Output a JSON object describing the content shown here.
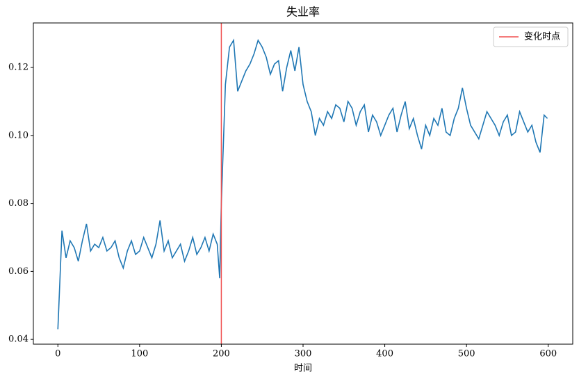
{
  "chart_data": {
    "type": "line",
    "title": "失业率",
    "xlabel": "时间",
    "color": "#1f77b4",
    "x": [
      0,
      5,
      10,
      15,
      20,
      25,
      30,
      35,
      40,
      45,
      50,
      55,
      60,
      65,
      70,
      75,
      80,
      85,
      90,
      95,
      100,
      105,
      110,
      115,
      120,
      125,
      130,
      135,
      140,
      145,
      150,
      155,
      160,
      165,
      170,
      175,
      180,
      185,
      190,
      195,
      198,
      200,
      205,
      210,
      215,
      220,
      225,
      230,
      235,
      240,
      245,
      250,
      255,
      260,
      265,
      270,
      275,
      280,
      285,
      290,
      295,
      300,
      305,
      310,
      315,
      320,
      325,
      330,
      335,
      340,
      345,
      350,
      355,
      360,
      365,
      370,
      375,
      380,
      385,
      390,
      395,
      400,
      405,
      410,
      415,
      420,
      425,
      430,
      435,
      440,
      445,
      450,
      455,
      460,
      465,
      470,
      475,
      480,
      485,
      490,
      495,
      500,
      505,
      510,
      515,
      520,
      525,
      530,
      535,
      540,
      545,
      550,
      555,
      560,
      565,
      570,
      575,
      580,
      585,
      590,
      595,
      599
    ],
    "values": [
      0.043,
      0.072,
      0.064,
      0.069,
      0.067,
      0.063,
      0.069,
      0.074,
      0.066,
      0.068,
      0.067,
      0.07,
      0.066,
      0.067,
      0.069,
      0.064,
      0.061,
      0.066,
      0.069,
      0.065,
      0.066,
      0.07,
      0.067,
      0.064,
      0.068,
      0.075,
      0.066,
      0.069,
      0.064,
      0.066,
      0.068,
      0.063,
      0.066,
      0.07,
      0.065,
      0.067,
      0.07,
      0.066,
      0.071,
      0.068,
      0.058,
      0.08,
      0.115,
      0.126,
      0.128,
      0.113,
      0.116,
      0.119,
      0.121,
      0.124,
      0.128,
      0.126,
      0.123,
      0.118,
      0.121,
      0.122,
      0.113,
      0.12,
      0.125,
      0.119,
      0.126,
      0.115,
      0.11,
      0.107,
      0.1,
      0.105,
      0.103,
      0.107,
      0.105,
      0.109,
      0.108,
      0.104,
      0.11,
      0.108,
      0.103,
      0.107,
      0.109,
      0.101,
      0.106,
      0.104,
      0.1,
      0.103,
      0.106,
      0.108,
      0.101,
      0.106,
      0.11,
      0.102,
      0.105,
      0.1,
      0.096,
      0.103,
      0.1,
      0.105,
      0.103,
      0.108,
      0.101,
      0.1,
      0.105,
      0.108,
      0.114,
      0.108,
      0.103,
      0.101,
      0.099,
      0.103,
      0.107,
      0.105,
      0.103,
      0.1,
      0.104,
      0.106,
      0.1,
      0.101,
      0.107,
      0.104,
      0.101,
      0.103,
      0.098,
      0.095,
      0.106,
      0.105
    ],
    "vline": {
      "x": 200,
      "color": "#f05050",
      "label": "变化时点"
    },
    "legend": "upper right",
    "xlim": [
      -30,
      630
    ],
    "xticks": [
      0,
      100,
      200,
      300,
      400,
      500,
      600
    ],
    "ylim": [
      0.0386,
      0.1331
    ],
    "yticks": [
      0.04,
      0.06,
      0.08,
      {
        "value": 0.1,
        "label": "0.10"
      },
      0.12
    ]
  }
}
